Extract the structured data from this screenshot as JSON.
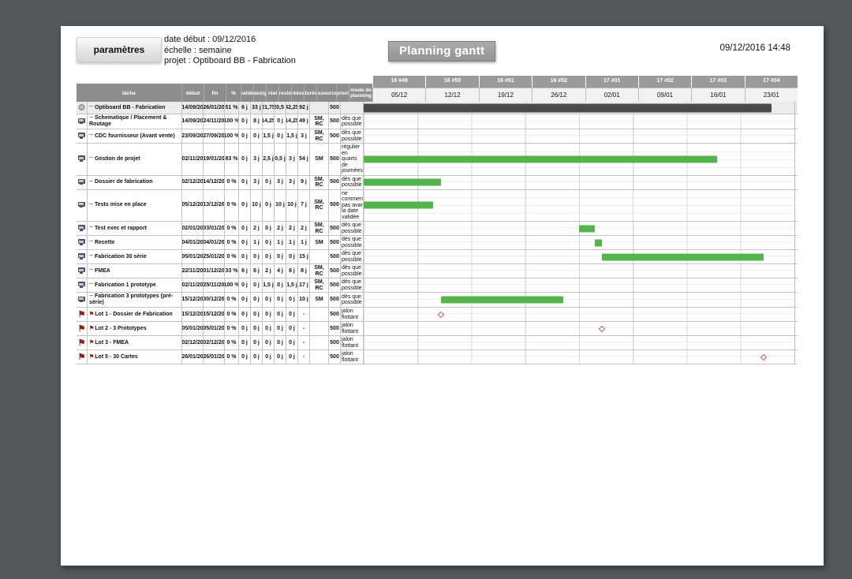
{
  "toolbar": {
    "parameters_button": "paramètres",
    "info_lines": [
      "date début : 09/12/2016",
      "échelle : semaine",
      "projet : Optiboard BB - Fabrication"
    ],
    "title": "Planning gantt",
    "timestamp": "09/12/2016 14:48"
  },
  "table": {
    "columns": [
      "tâche",
      "début",
      "fin",
      "%",
      "validé",
      "assig",
      "réel",
      "reste",
      "rééva",
      "durée",
      "ressources",
      "priori",
      "mode de planning"
    ],
    "rows": [
      {
        "icon": "gear",
        "bold": true,
        "name": "Optiboard BB - Fabrication",
        "debut": "14/09/20",
        "fin": "26/01/20",
        "pct": "51 %",
        "valide": "6 j",
        "assig": "33 j",
        "reel": "21,75",
        "reste": "20,5 j",
        "reeva": "42,25",
        "duree": "92 j",
        "ressources": "",
        "priorite": "500",
        "mode": "",
        "bar": {
          "start": 0,
          "end": 94.6,
          "color": "dark"
        }
      },
      {
        "icon": "computer",
        "name": "Schematique / Placement & Routage",
        "debut": "14/09/20",
        "fin": "24/11/20",
        "pct": "100 %",
        "valide": "0 j",
        "assig": "8 j",
        "reel": "14,25",
        "reste": "0 j",
        "reeva": "14,25",
        "duree": "49 j",
        "ressources": "SM, RC",
        "priorite": "500",
        "mode": "dès que possible"
      },
      {
        "icon": "computer",
        "name": "CDC fournisseur (Avant vente)",
        "debut": "23/09/20",
        "fin": "27/09/20",
        "pct": "100 %",
        "valide": "0 j",
        "assig": "0 j",
        "reel": "1,5 j",
        "reste": "0 j",
        "reeva": "1,5 j",
        "duree": "3 j",
        "ressources": "SM, RC",
        "priorite": "500",
        "mode": "dès que possible"
      },
      {
        "icon": "computer",
        "name": "Gestion de projet",
        "debut": "02/11/20",
        "fin": "19/01/20",
        "pct": "83 %",
        "valide": "0 j",
        "assig": "3 j",
        "reel": "2,5 j",
        "reste": "0,5 j",
        "reeva": "3 j",
        "duree": "54 j",
        "ressources": "SM",
        "priorite": "500",
        "mode": "régulier en quarts de journées",
        "bar": {
          "start": 0,
          "end": 82.1,
          "color": "green"
        }
      },
      {
        "icon": "computer",
        "name": "Dossier de fabrication",
        "debut": "02/12/20",
        "fin": "14/12/20",
        "pct": "0 %",
        "valide": "0 j",
        "assig": "3 j",
        "reel": "0 j",
        "reste": "3 j",
        "reeva": "3 j",
        "duree": "9 j",
        "ressources": "SM, RC",
        "priorite": "500",
        "mode": "dès que possible",
        "bar": {
          "start": 0,
          "end": 17.9,
          "color": "green"
        }
      },
      {
        "icon": "computer",
        "name": "Tests mise en place",
        "debut": "05/12/20",
        "fin": "13/12/20",
        "pct": "0 %",
        "valide": "0 j",
        "assig": "10 j",
        "reel": "0 j",
        "reste": "10 j",
        "reeva": "10 j",
        "duree": "7 j",
        "ressources": "SM, RC",
        "priorite": "500",
        "mode": "ne commence pas avant la date validée",
        "bar": {
          "start": 0,
          "end": 16.1,
          "color": "green"
        }
      },
      {
        "icon": "computer",
        "name": "Test exec et rapport",
        "debut": "02/01/20",
        "fin": "03/01/20",
        "pct": "0 %",
        "valide": "0 j",
        "assig": "2 j",
        "reel": "0 j",
        "reste": "2 j",
        "reeva": "2 j",
        "duree": "2 j",
        "ressources": "SM, RC",
        "priorite": "500",
        "mode": "dès que possible",
        "bar": {
          "start": 50.0,
          "end": 53.6,
          "color": "green"
        }
      },
      {
        "icon": "computer",
        "name": "Recette",
        "debut": "04/01/20",
        "fin": "04/01/20",
        "pct": "0 %",
        "valide": "0 j",
        "assig": "1 j",
        "reel": "0 j",
        "reste": "1 j",
        "reeva": "1 j",
        "duree": "1 j",
        "ressources": "SM",
        "priorite": "500",
        "mode": "dès que possible",
        "bar": {
          "start": 53.6,
          "end": 55.4,
          "color": "green"
        }
      },
      {
        "icon": "computer",
        "name": "Fabrication 30 série",
        "debut": "05/01/20",
        "fin": "25/01/20",
        "pct": "0 %",
        "valide": "0 j",
        "assig": "0 j",
        "reel": "0 j",
        "reste": "0 j",
        "reeva": "0 j",
        "duree": "15 j",
        "ressources": "",
        "priorite": "500",
        "mode": "dès que possible",
        "bar": {
          "start": 55.4,
          "end": 92.9,
          "color": "green"
        }
      },
      {
        "icon": "computer",
        "name": "FMEA",
        "debut": "22/11/20",
        "fin": "01/12/20",
        "pct": "33 %",
        "valide": "6 j",
        "assig": "6 j",
        "reel": "2 j",
        "reste": "4 j",
        "reeva": "6 j",
        "duree": "8 j",
        "ressources": "SM, RC",
        "priorite": "500",
        "mode": "dès que possible"
      },
      {
        "icon": "computer",
        "name": "Fabrication 1 prototype",
        "debut": "02/11/20",
        "fin": "25/11/20",
        "pct": "100 %",
        "valide": "0 j",
        "assig": "0 j",
        "reel": "1,5 j",
        "reste": "0 j",
        "reeva": "1,5 j",
        "duree": "17 j",
        "ressources": "SM, RC",
        "priorite": "500",
        "mode": "dès que possible"
      },
      {
        "icon": "computer",
        "name": "Fabrication 3 prototypes (pré-série)",
        "debut": "15/12/20",
        "fin": "30/12/20",
        "pct": "0 %",
        "valide": "0 j",
        "assig": "0 j",
        "reel": "0 j",
        "reste": "0 j",
        "reeva": "0 j",
        "duree": "10 j",
        "ressources": "SM",
        "priorite": "500",
        "mode": "dès que possible",
        "bar": {
          "start": 17.9,
          "end": 46.4,
          "color": "green"
        }
      },
      {
        "icon": "flag",
        "name": "Lot 1 - Dossier de Fabrication",
        "debut": "15/12/20",
        "fin": "15/12/20",
        "pct": "0 %",
        "valide": "0 j",
        "assig": "0 j",
        "reel": "0 j",
        "reste": "0 j",
        "reeva": "0 j",
        "duree": "-",
        "ressources": "",
        "priorite": "500",
        "mode": "jalon flottant",
        "milestone_pct": 17.9
      },
      {
        "icon": "flag",
        "name": "Lot 2 - 3 Prototypes",
        "debut": "05/01/20",
        "fin": "05/01/20",
        "pct": "0 %",
        "valide": "0 j",
        "assig": "0 j",
        "reel": "0 j",
        "reste": "0 j",
        "reeva": "0 j",
        "duree": "-",
        "ressources": "",
        "priorite": "500",
        "mode": "jalon flottant",
        "milestone_pct": 55.4
      },
      {
        "icon": "flag",
        "name": "Lot 3 - FMEA",
        "debut": "02/12/20",
        "fin": "02/12/20",
        "pct": "0 %",
        "valide": "0 j",
        "assig": "0 j",
        "reel": "0 j",
        "reste": "0 j",
        "reeva": "0 j",
        "duree": "-",
        "ressources": "",
        "priorite": "500",
        "mode": "jalon flottant"
      },
      {
        "icon": "flag",
        "name": "Lot 5 - 30 Cartes",
        "debut": "26/01/20",
        "fin": "26/01/20",
        "pct": "0 %",
        "valide": "0 j",
        "assig": "0 j",
        "reel": "0 j",
        "reste": "0 j",
        "reeva": "0 j",
        "duree": "-",
        "ressources": "",
        "priorite": "500",
        "mode": "jalon flottant",
        "milestone_pct": 92.9
      }
    ]
  },
  "gantt": {
    "weeks": [
      {
        "week": "16 #49",
        "date": "05/12"
      },
      {
        "week": "16 #50",
        "date": "12/12"
      },
      {
        "week": "16 #51",
        "date": "19/12"
      },
      {
        "week": "16 #52",
        "date": "26/12"
      },
      {
        "week": "17 #01",
        "date": "02/01"
      },
      {
        "week": "17 #02",
        "date": "09/01"
      },
      {
        "week": "17 #03",
        "date": "16/01"
      },
      {
        "week": "17 #04",
        "date": "23/01"
      }
    ],
    "colors": {
      "green": "#55b34c",
      "dark": "#4a4a4a",
      "milestone_outline": "#c25b5b"
    }
  }
}
